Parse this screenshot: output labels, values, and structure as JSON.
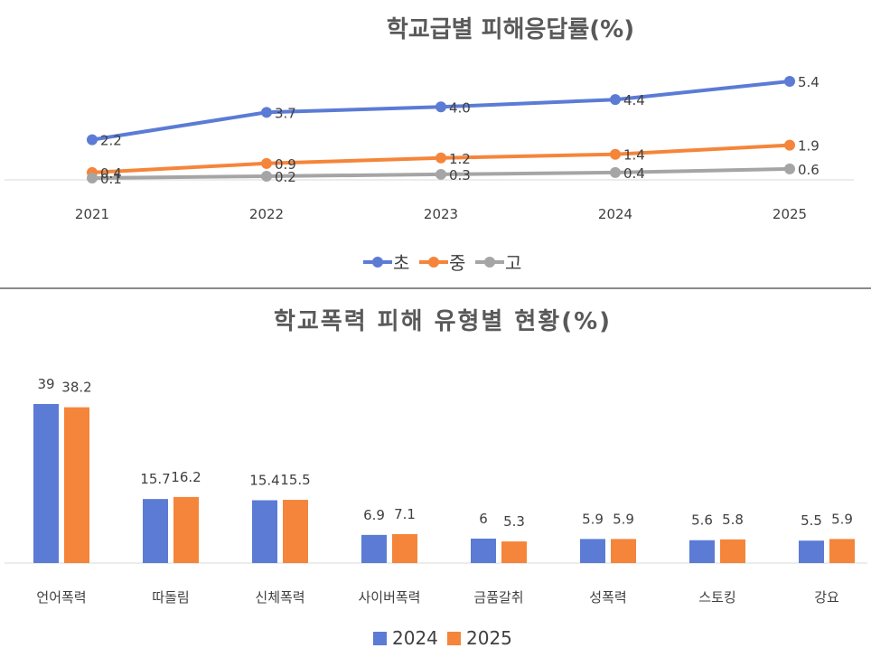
{
  "chart_data": [
    {
      "type": "line",
      "title": "학교급별 피해응답률(%)",
      "categories": [
        "2021",
        "2022",
        "2023",
        "2024",
        "2025"
      ],
      "series": [
        {
          "name": "초",
          "values": [
            2.2,
            3.7,
            4.0,
            4.4,
            5.4
          ],
          "labels": [
            "2.2",
            "3.7",
            "4.0",
            "4.4",
            "5.4"
          ],
          "color": "#5b7bd5"
        },
        {
          "name": "중",
          "values": [
            0.4,
            0.9,
            1.2,
            1.4,
            1.9
          ],
          "labels": [
            "0.4",
            "0.9",
            "1.2",
            "1.4",
            "1.9"
          ],
          "color": "#f5853a"
        },
        {
          "name": "고",
          "values": [
            0.1,
            0.2,
            0.3,
            0.4,
            0.6
          ],
          "labels": [
            "0.1",
            "0.2",
            "0.3",
            "0.4",
            "0.6"
          ],
          "color": "#a5a5a5"
        }
      ],
      "ylim": [
        0,
        6
      ],
      "grid": false,
      "legend": "bottom"
    },
    {
      "type": "bar",
      "title": "학교폭력 피해 유형별 현황(%)",
      "categories": [
        "언어폭력",
        "따돌림",
        "신체폭력",
        "사이버폭력",
        "금품갈취",
        "성폭력",
        "스토킹",
        "강요"
      ],
      "series": [
        {
          "name": "2024",
          "values": [
            39,
            15.7,
            15.4,
            6.9,
            6,
            5.9,
            5.6,
            5.5
          ],
          "labels": [
            "39",
            "15.7",
            "15.4",
            "6.9",
            "6",
            "5.9",
            "5.6",
            "5.5"
          ],
          "color": "#5b7bd5"
        },
        {
          "name": "2025",
          "values": [
            38.2,
            16.2,
            15.5,
            7.1,
            5.3,
            5.9,
            5.8,
            5.9
          ],
          "labels": [
            "38.2",
            "16.2",
            "15.5",
            "7.1",
            "5.3",
            "5.9",
            "5.8",
            "5.9"
          ],
          "color": "#f5853a"
        }
      ],
      "ylim": [
        0,
        39
      ],
      "grid": false,
      "legend": "bottom"
    }
  ]
}
